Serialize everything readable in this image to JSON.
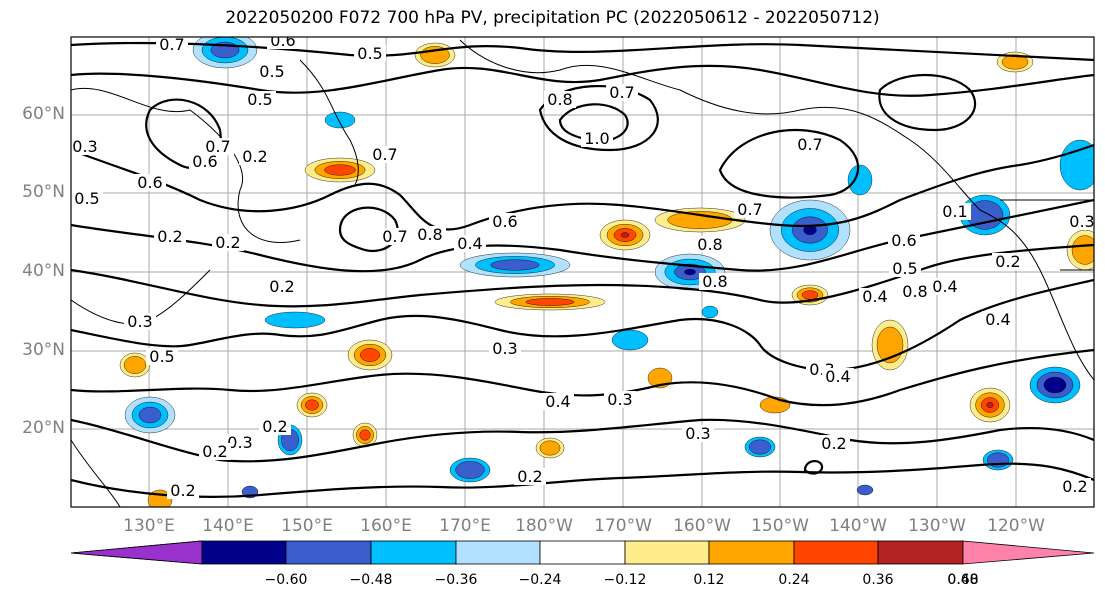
{
  "title": "2022050200 F072 700 hPa PV, precipitation PC (2022050612 - 2022050712)",
  "map": {
    "lat_labels": [
      "60°N",
      "50°N",
      "40°N",
      "30°N",
      "20°N"
    ],
    "lon_labels": [
      "130°E",
      "140°E",
      "150°E",
      "160°E",
      "170°E",
      "180°W",
      "170°W",
      "160°W",
      "150°W",
      "140°W",
      "130°W",
      "120°W"
    ],
    "contour_labels": [
      "0.7",
      "0.6",
      "0.5",
      "0.5",
      "0.5",
      "0.7",
      "0.8",
      "1.0",
      "0.7",
      "0.7",
      "0.8",
      "0.6",
      "0.2",
      "0.7",
      "0.6",
      "0.5",
      "0.3",
      "0.4",
      "0.6",
      "0.2",
      "0.7",
      "0.8",
      "0.6",
      "0.4",
      "0.8",
      "0.7",
      "0.8",
      "0.5",
      "0.4",
      "0.4",
      "0.1",
      "0.3",
      "0.2",
      "0.2",
      "0.3",
      "0.5",
      "0.3",
      "0.4",
      "0.3",
      "0.4",
      "0.3",
      "0.2",
      "0.3",
      "0.2",
      "0.2",
      "0.2",
      "0.2",
      "0.2",
      "0.3",
      "0.2"
    ]
  },
  "colorbar": {
    "colors": [
      "#9932CC",
      "#00008B",
      "#3A5FCD",
      "#00BFFF",
      "#B0E2FF",
      "#FFFFFF",
      "#FFEC8B",
      "#FFA500",
      "#FF4500",
      "#B22222",
      "#FF82AB"
    ],
    "ticks": [
      "−0.60",
      "−0.48",
      "−0.36",
      "−0.24",
      "−0.12",
      "0.12",
      "0.24",
      "0.36",
      "0.48",
      "0.60"
    ]
  }
}
